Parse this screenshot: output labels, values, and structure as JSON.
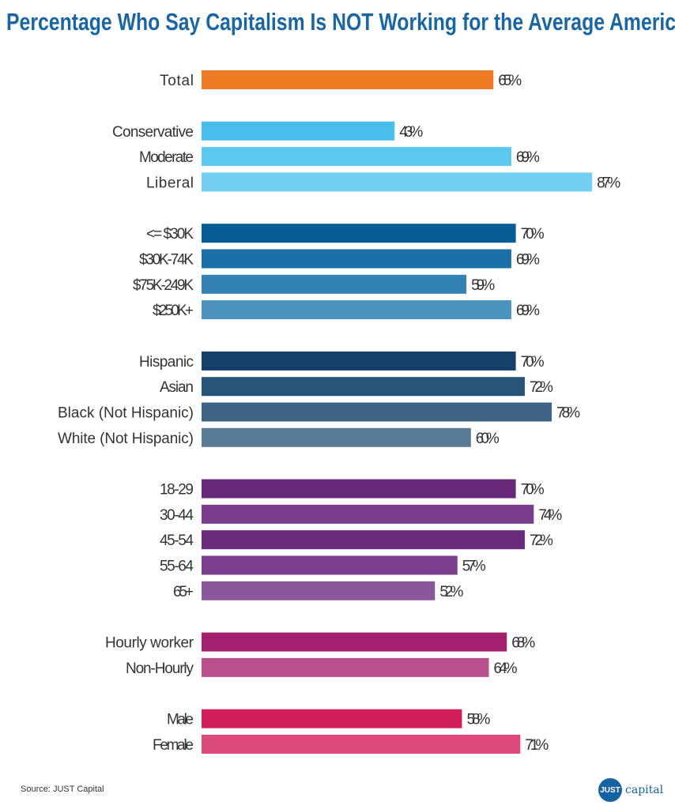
{
  "chart_data": {
    "type": "bar",
    "orientation": "horizontal",
    "title": "Percentage Who Say Capitalism Is NOT Working for the Average American",
    "xlim": [
      0,
      100
    ],
    "grid": false,
    "unit": "%",
    "groups": [
      {
        "rows": [
          {
            "label": "Total",
            "value": 65,
            "color": "#ee7a22"
          }
        ]
      },
      {
        "rows": [
          {
            "label": "Conservative",
            "value": 43,
            "color": "#47bfea"
          },
          {
            "label": "Moderate",
            "value": 69,
            "color": "#5ac8ef"
          },
          {
            "label": "Liberal",
            "value": 87,
            "color": "#72cff1"
          }
        ]
      },
      {
        "rows": [
          {
            "label": "<= $30K",
            "value": 70,
            "color": "#075d96"
          },
          {
            "label": "$30K-74K",
            "value": 69,
            "color": "#1a70a6"
          },
          {
            "label": "$75K-249K",
            "value": 59,
            "color": "#3282b3"
          },
          {
            "label": "$250K+",
            "value": 69,
            "color": "#4c93be"
          }
        ]
      },
      {
        "rows": [
          {
            "label": "Hispanic",
            "value": 70,
            "color": "#14406a"
          },
          {
            "label": "Asian",
            "value": 72,
            "color": "#27557a"
          },
          {
            "label": "Black (Not Hispanic)",
            "value": 78,
            "color": "#3f6486"
          },
          {
            "label": "White (Not Hispanic)",
            "value": 60,
            "color": "#5a7b96"
          }
        ]
      },
      {
        "rows": [
          {
            "label": "18-29",
            "value": 70,
            "color": "#68287a"
          },
          {
            "label": "30-44",
            "value": 74,
            "color": "#7b3c8c"
          },
          {
            "label": "45-54",
            "value": 72,
            "color": "#6a2a7d"
          },
          {
            "label": "55-64",
            "value": 57,
            "color": "#7c3e8e"
          },
          {
            "label": "65+",
            "value": 52,
            "color": "#8b579c"
          }
        ]
      },
      {
        "rows": [
          {
            "label": "Hourly worker",
            "value": 68,
            "color": "#a3206f"
          },
          {
            "label": "Non-Hourly",
            "value": 64,
            "color": "#b94f8c"
          }
        ]
      },
      {
        "rows": [
          {
            "label": "Male",
            "value": 58,
            "color": "#d21f5c"
          },
          {
            "label": "Female",
            "value": 71,
            "color": "#dc4a7b"
          }
        ]
      }
    ]
  },
  "source": "Source: JUST Capital",
  "logo": {
    "mark": "JUST",
    "word": "capital",
    "color": "#1563a3"
  }
}
